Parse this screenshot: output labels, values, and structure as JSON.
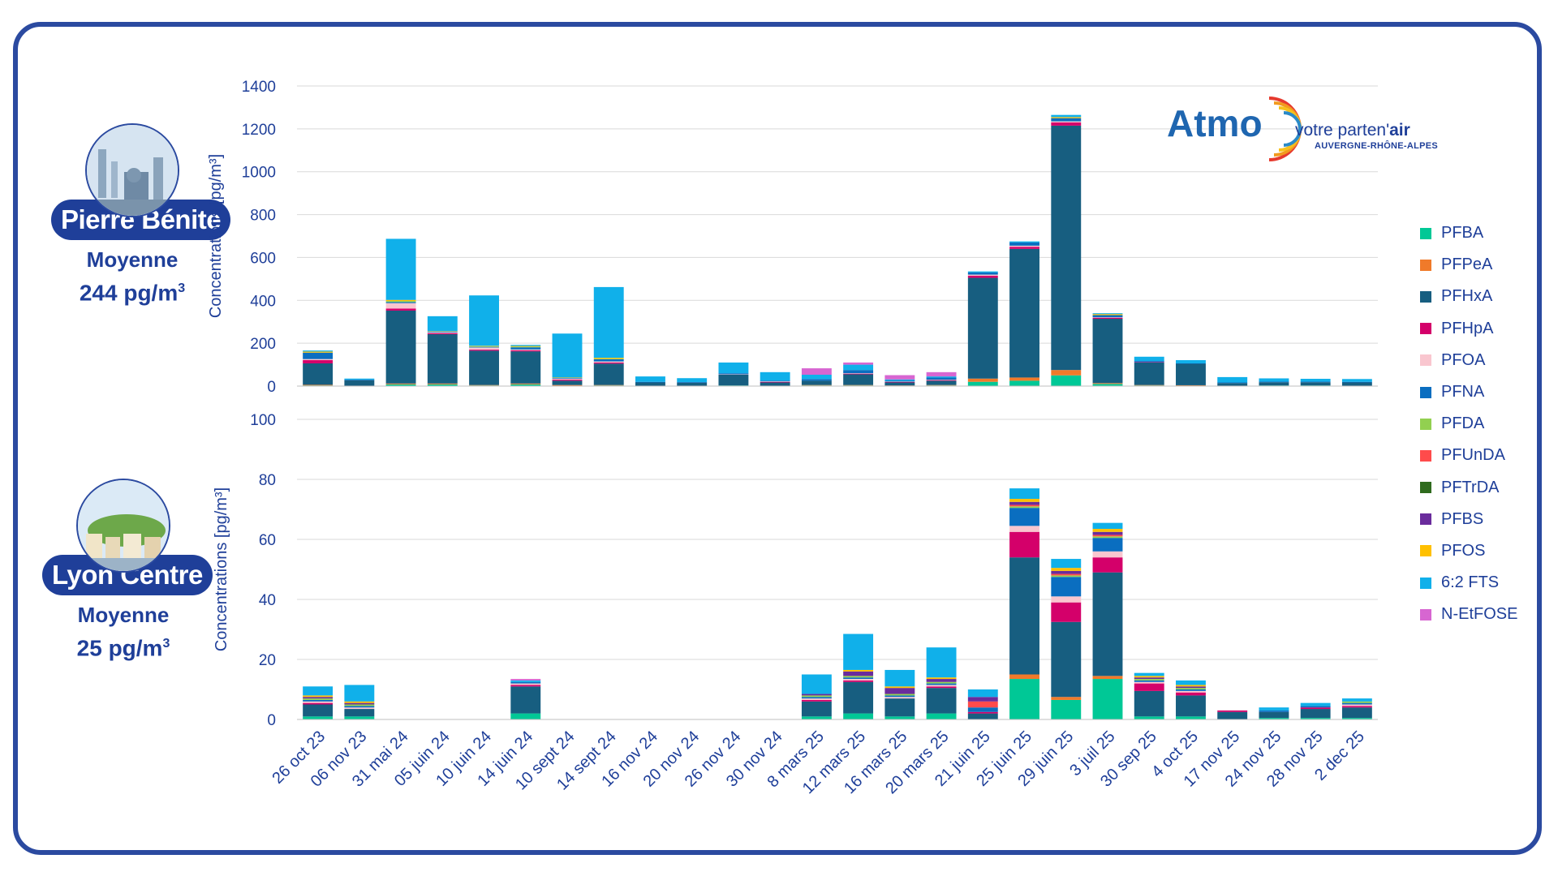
{
  "colors": {
    "frame": "#2b4aa0",
    "axis_text": "#1f3f99",
    "pill_bg": "#1f3f99"
  },
  "stations": [
    {
      "name": "Pierre Bénite",
      "caption": "Moyenne",
      "average_value": "244 pg/m",
      "unit_exp": "3"
    },
    {
      "name": "Lyon Centre",
      "caption": "Moyenne",
      "average_value": "25 pg/m",
      "unit_exp": "3"
    }
  ],
  "logo": {
    "brand": "Atmo",
    "tagline_a": "votre parten'",
    "tagline_b": "air",
    "region": "AUVERGNE-RHÔNE-ALPES"
  },
  "legend": [
    {
      "name": "PFBA",
      "color": "#00c896"
    },
    {
      "name": "PFPeA",
      "color": "#f07a2a"
    },
    {
      "name": "PFHxA",
      "color": "#175e80"
    },
    {
      "name": "PFHpA",
      "color": "#d4006a"
    },
    {
      "name": "PFOA",
      "color": "#f9c6cf"
    },
    {
      "name": "PFNA",
      "color": "#0a6ec0"
    },
    {
      "name": "PFDA",
      "color": "#92d050"
    },
    {
      "name": "PFUnDA",
      "color": "#ff4b4b"
    },
    {
      "name": "PFTrDA",
      "color": "#2f6b1e"
    },
    {
      "name": "PFBS",
      "color": "#6a2c9c"
    },
    {
      "name": "PFOS",
      "color": "#ffc000"
    },
    {
      "name": "6:2 FTS",
      "color": "#10b0ea"
    },
    {
      "name": "N-EtFOSE",
      "color": "#d766d1"
    }
  ],
  "chart_data": [
    {
      "type": "bar",
      "stacked": true,
      "title": "Pierre Bénite",
      "xlabel": "",
      "ylabel": "Concentrations [pg/m³]",
      "ylim": [
        0,
        1400
      ],
      "yticks": [
        0,
        200,
        400,
        600,
        800,
        1000,
        1200,
        1400
      ],
      "categories": [
        "26 oct 23",
        "06 nov 23",
        "31 mai 24",
        "05 juin 24",
        "10 juin 24",
        "14 juin 24",
        "10 sept 24",
        "14 sept 24",
        "16 nov 24",
        "20 nov 24",
        "26 nov 24",
        "30 nov 24",
        "8 mars 25",
        "12 mars 25",
        "16 mars 25",
        "20 mars 25",
        "21 juin 25",
        "25 juin 25",
        "29 juin 25",
        "3 juil 25",
        "30 sep 25",
        "4 oct 25",
        "17 nov 25",
        "24 nov 25",
        "28 nov 25",
        "2 dec 25"
      ],
      "series": [
        {
          "name": "PFBA",
          "values": [
            3,
            2,
            8,
            8,
            3,
            8,
            2,
            3,
            2,
            2,
            3,
            2,
            3,
            3,
            2,
            3,
            20,
            25,
            50,
            10,
            3,
            3,
            2,
            3,
            3,
            2
          ]
        },
        {
          "name": "PFPeA",
          "values": [
            3,
            0,
            4,
            4,
            2,
            4,
            3,
            2,
            0,
            0,
            0,
            0,
            2,
            2,
            1,
            2,
            15,
            15,
            25,
            4,
            2,
            1,
            0,
            0,
            0,
            0
          ]
        },
        {
          "name": "PFHxA",
          "values": [
            100,
            25,
            340,
            230,
            160,
            150,
            20,
            100,
            15,
            14,
            50,
            15,
            20,
            50,
            14,
            20,
            470,
            600,
            1140,
            300,
            105,
            100,
            12,
            15,
            15,
            15
          ]
        },
        {
          "name": "PFHpA",
          "values": [
            15,
            0,
            10,
            5,
            5,
            5,
            5,
            5,
            0,
            0,
            0,
            3,
            0,
            3,
            2,
            3,
            10,
            10,
            15,
            5,
            2,
            0,
            0,
            0,
            0,
            0
          ]
        },
        {
          "name": "PFOA",
          "values": [
            5,
            0,
            25,
            4,
            10,
            4,
            5,
            5,
            0,
            0,
            2,
            2,
            0,
            2,
            2,
            2,
            5,
            5,
            5,
            2,
            0,
            0,
            0,
            0,
            0,
            0
          ]
        },
        {
          "name": "PFNA",
          "values": [
            30,
            3,
            5,
            3,
            3,
            10,
            3,
            10,
            3,
            3,
            5,
            3,
            8,
            15,
            5,
            10,
            10,
            15,
            15,
            10,
            5,
            2,
            3,
            3,
            3,
            3
          ]
        },
        {
          "name": "PFDA",
          "values": [
            0,
            0,
            5,
            0,
            3,
            3,
            0,
            2,
            0,
            0,
            0,
            0,
            0,
            0,
            0,
            0,
            0,
            0,
            0,
            0,
            0,
            0,
            0,
            0,
            0,
            0
          ]
        },
        {
          "name": "PFUnDA",
          "values": [
            0,
            0,
            0,
            0,
            0,
            0,
            0,
            0,
            0,
            0,
            0,
            0,
            0,
            0,
            0,
            0,
            0,
            0,
            0,
            0,
            0,
            0,
            0,
            0,
            0,
            0
          ]
        },
        {
          "name": "PFTrDA",
          "values": [
            0,
            0,
            0,
            0,
            0,
            0,
            0,
            0,
            0,
            0,
            0,
            0,
            0,
            0,
            0,
            0,
            0,
            0,
            0,
            0,
            0,
            0,
            0,
            0,
            0,
            0
          ]
        },
        {
          "name": "PFBS",
          "values": [
            0,
            0,
            0,
            0,
            0,
            0,
            0,
            0,
            0,
            0,
            0,
            0,
            0,
            0,
            0,
            0,
            0,
            0,
            0,
            0,
            0,
            0,
            0,
            0,
            0,
            0
          ]
        },
        {
          "name": "PFOS",
          "values": [
            5,
            0,
            5,
            2,
            2,
            3,
            2,
            5,
            0,
            0,
            0,
            0,
            0,
            0,
            0,
            0,
            0,
            0,
            5,
            5,
            0,
            0,
            0,
            0,
            0,
            0
          ]
        },
        {
          "name": "6:2 FTS",
          "values": [
            5,
            5,
            285,
            70,
            235,
            5,
            205,
            330,
            25,
            18,
            50,
            40,
            20,
            25,
            5,
            5,
            5,
            5,
            10,
            4,
            20,
            15,
            25,
            15,
            13,
            13
          ]
        },
        {
          "name": "N-EtFOSE",
          "values": [
            0,
            0,
            0,
            0,
            0,
            0,
            0,
            0,
            0,
            0,
            0,
            0,
            30,
            10,
            20,
            20,
            0,
            0,
            0,
            0,
            0,
            0,
            0,
            0,
            0,
            0
          ]
        }
      ]
    },
    {
      "type": "bar",
      "stacked": true,
      "title": "Lyon Centre",
      "xlabel": "",
      "ylabel": "Concentrations [pg/m³]",
      "ylim": [
        0,
        100
      ],
      "yticks": [
        0,
        20,
        40,
        60,
        80,
        100
      ],
      "categories": [
        "26 oct 23",
        "06 nov 23",
        "31 mai 24",
        "05 juin 24",
        "10 juin 24",
        "14 juin 24",
        "10 sept 24",
        "14 sept 24",
        "16 nov 24",
        "20 nov 24",
        "26 nov 24",
        "30 nov 24",
        "8 mars 25",
        "12 mars 25",
        "16 mars 25",
        "20 mars 25",
        "21 juin 25",
        "25 juin 25",
        "29 juin 25",
        "3 juil 25",
        "30 sep 25",
        "4 oct 25",
        "17 nov 25",
        "24 nov 25",
        "28 nov 25",
        "2 dec 25"
      ],
      "series": [
        {
          "name": "PFBA",
          "values": [
            1,
            1,
            0,
            0,
            0,
            2,
            0,
            0,
            0,
            0,
            0,
            0,
            1,
            2,
            1,
            2,
            0,
            13.5,
            6.5,
            13.5,
            1,
            1,
            0,
            0.5,
            0.5,
            0.5
          ]
        },
        {
          "name": "PFPeA",
          "values": [
            0,
            0,
            0,
            0,
            0,
            0,
            0,
            0,
            0,
            0,
            0,
            0,
            0,
            0,
            0,
            0,
            0,
            1.5,
            1,
            1,
            0,
            0,
            0,
            0,
            0,
            0
          ]
        },
        {
          "name": "PFHxA",
          "values": [
            4,
            2.5,
            0,
            0,
            0,
            9,
            0,
            0,
            0,
            0,
            0,
            0,
            5,
            10.5,
            6,
            8.5,
            2,
            39,
            25,
            34.5,
            8.5,
            7,
            2.5,
            2,
            3,
            3.5
          ]
        },
        {
          "name": "PFHpA",
          "values": [
            0.5,
            0,
            0,
            0,
            0,
            0.5,
            0,
            0,
            0,
            0,
            0,
            0,
            0.5,
            0.5,
            0,
            0.5,
            0.5,
            8.5,
            6.5,
            5,
            2.5,
            1,
            0.5,
            0,
            0.5,
            0.5
          ]
        },
        {
          "name": "PFOA",
          "values": [
            0.5,
            0.5,
            0,
            0,
            0,
            0.5,
            0,
            0,
            0,
            0,
            0,
            0,
            0.5,
            0.5,
            0.5,
            0.5,
            0,
            2,
            2,
            2,
            0.5,
            0.5,
            0,
            0,
            0,
            0.5
          ]
        },
        {
          "name": "PFNA",
          "values": [
            0.5,
            0.5,
            0,
            0,
            0,
            0.5,
            0,
            0,
            0,
            0,
            0,
            0,
            0.5,
            0.5,
            0.5,
            0.5,
            1.5,
            6,
            6.5,
            4.5,
            0.5,
            0.5,
            0,
            0.5,
            0.5,
            0.5
          ]
        },
        {
          "name": "PFDA",
          "values": [
            0.5,
            0.5,
            0,
            0,
            0,
            0,
            0,
            0,
            0,
            0,
            0,
            0,
            0.5,
            0.5,
            0.5,
            0.5,
            0,
            0.5,
            0.5,
            0.5,
            0.5,
            0.5,
            0,
            0,
            0,
            0.5
          ]
        },
        {
          "name": "PFUnDA",
          "values": [
            0,
            0,
            0,
            0,
            0,
            0,
            0,
            0,
            0,
            0,
            0,
            0,
            0,
            0,
            0,
            0,
            2,
            0.5,
            0.5,
            0.5,
            0,
            0,
            0,
            0,
            0,
            0
          ]
        },
        {
          "name": "PFTrDA",
          "values": [
            0,
            0,
            0,
            0,
            0,
            0,
            0,
            0,
            0,
            0,
            0,
            0,
            0,
            0,
            0,
            0,
            0,
            0,
            0,
            0,
            0,
            0,
            0,
            0,
            0,
            0
          ]
        },
        {
          "name": "PFBS",
          "values": [
            0.5,
            0.5,
            0,
            0,
            0,
            0,
            0,
            0,
            0,
            0,
            0,
            0,
            0.5,
            1.5,
            2,
            1,
            1.5,
            1,
            1,
            1,
            0.5,
            0.5,
            0,
            0,
            0,
            0
          ]
        },
        {
          "name": "PFOS",
          "values": [
            0.5,
            0.5,
            0,
            0,
            0,
            0,
            0,
            0,
            0,
            0,
            0,
            0,
            0,
            0.5,
            0.5,
            0.5,
            0,
            1,
            1,
            1,
            0.5,
            0.5,
            0,
            0,
            0,
            0
          ]
        },
        {
          "name": "6:2 FTS",
          "values": [
            3,
            5.5,
            0,
            0,
            0,
            0.5,
            0,
            0,
            0,
            0,
            0,
            0,
            6.5,
            12,
            5.5,
            10,
            2.5,
            3.5,
            3,
            2,
            1,
            1.5,
            0,
            1,
            1,
            1
          ]
        },
        {
          "name": "N-EtFOSE",
          "values": [
            0,
            0,
            0,
            0,
            0,
            0.5,
            0,
            0,
            0,
            0,
            0,
            0,
            0,
            0,
            0,
            0,
            0,
            0,
            0,
            0,
            0,
            0,
            0,
            0,
            0,
            0
          ]
        }
      ]
    }
  ]
}
